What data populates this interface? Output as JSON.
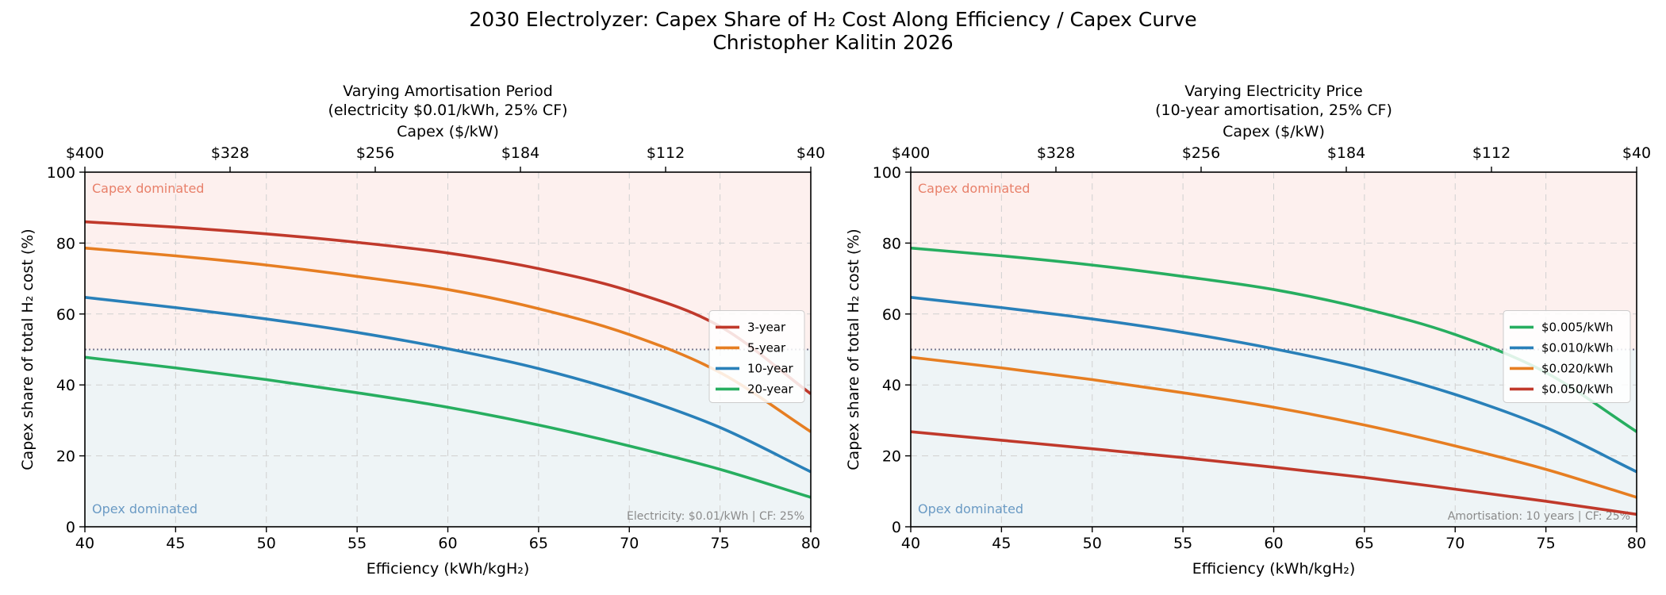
{
  "figure": {
    "title_line1": "2030 Electrolyzer: Capex Share of H₂ Cost Along Efficiency / Capex Curve",
    "title_line2": "Christopher Kalitin 2026"
  },
  "colors": {
    "red": "#c0392b",
    "orange": "#e67e22",
    "blue": "#2980b9",
    "green": "#27ae60",
    "capex_region": "#fdf0ee",
    "opex_region": "#eef4f6",
    "capex_text": "#e8806a",
    "opex_text": "#6a9ac4",
    "threshold": "#7a7a90"
  },
  "chart_data": [
    {
      "type": "line",
      "title_line1": "Varying Amortisation Period",
      "title_line2": "(electricity $0.01/kWh, 25% CF)",
      "xlabel": "Efficiency (kWh/kgH₂)",
      "ylabel": "Capex share of total H₂ cost (%)",
      "top_xlabel": "Capex ($/kW)",
      "xlim": [
        40,
        80
      ],
      "ylim": [
        0,
        100
      ],
      "xticks": [
        "40",
        "45",
        "50",
        "55",
        "60",
        "65",
        "70",
        "75",
        "80"
      ],
      "yticks": [
        "0",
        "20",
        "40",
        "60",
        "80",
        "100"
      ],
      "top_ticks": [
        {
          "x": 40,
          "label": "$400"
        },
        {
          "x": 48,
          "label": "$328"
        },
        {
          "x": 56,
          "label": "$256"
        },
        {
          "x": 64,
          "label": "$184"
        },
        {
          "x": 72,
          "label": "$112"
        },
        {
          "x": 80,
          "label": "$40"
        }
      ],
      "grid": true,
      "threshold": 50,
      "region_labels": {
        "upper": "Capex dominated",
        "lower": "Opex dominated"
      },
      "annotation": "Electricity: $0.01/kWh  |  CF: 25%",
      "legend_position": "center-right",
      "x": [
        40,
        45,
        50,
        55,
        60,
        65,
        70,
        75,
        80
      ],
      "series": [
        {
          "name": "3-year",
          "color": "#c0392b",
          "values": [
            86,
            84.5,
            82.6,
            80.2,
            77.2,
            72.8,
            66.5,
            56.5,
            37.5
          ]
        },
        {
          "name": "5-year",
          "color": "#e67e22",
          "values": [
            78.6,
            76.4,
            73.8,
            70.6,
            66.9,
            61.5,
            54.2,
            43.5,
            26.8
          ]
        },
        {
          "name": "10-year",
          "color": "#2980b9",
          "values": [
            64.7,
            61.8,
            58.6,
            54.8,
            50.2,
            44.6,
            37.3,
            28,
            15.5
          ]
        },
        {
          "name": "20-year",
          "color": "#27ae60",
          "values": [
            47.8,
            44.8,
            41.5,
            37.8,
            33.7,
            28.7,
            22.8,
            16.2,
            8.3
          ]
        }
      ]
    },
    {
      "type": "line",
      "title_line1": "Varying Electricity Price",
      "title_line2": "(10-year amortisation, 25% CF)",
      "xlabel": "Efficiency (kWh/kgH₂)",
      "ylabel": "Capex share of total H₂ cost (%)",
      "top_xlabel": "Capex ($/kW)",
      "xlim": [
        40,
        80
      ],
      "ylim": [
        0,
        100
      ],
      "xticks": [
        "40",
        "45",
        "50",
        "55",
        "60",
        "65",
        "70",
        "75",
        "80"
      ],
      "yticks": [
        "0",
        "20",
        "40",
        "60",
        "80",
        "100"
      ],
      "top_ticks": [
        {
          "x": 40,
          "label": "$400"
        },
        {
          "x": 48,
          "label": "$328"
        },
        {
          "x": 56,
          "label": "$256"
        },
        {
          "x": 64,
          "label": "$184"
        },
        {
          "x": 72,
          "label": "$112"
        },
        {
          "x": 80,
          "label": "$40"
        }
      ],
      "grid": true,
      "threshold": 50,
      "region_labels": {
        "upper": "Capex dominated",
        "lower": "Opex dominated"
      },
      "annotation": "Amortisation: 10 years  |  CF: 25%",
      "legend_position": "center-right",
      "x": [
        40,
        45,
        50,
        55,
        60,
        65,
        70,
        75,
        80
      ],
      "series": [
        {
          "name": "$0.005/kWh",
          "color": "#27ae60",
          "values": [
            78.6,
            76.4,
            73.8,
            70.6,
            66.9,
            61.5,
            54.2,
            43.5,
            26.8
          ]
        },
        {
          "name": "$0.010/kWh",
          "color": "#2980b9",
          "values": [
            64.7,
            61.8,
            58.6,
            54.8,
            50.2,
            44.6,
            37.3,
            28,
            15.5
          ]
        },
        {
          "name": "$0.020/kWh",
          "color": "#e67e22",
          "values": [
            47.8,
            44.8,
            41.5,
            37.8,
            33.7,
            28.7,
            22.8,
            16.2,
            8.3
          ]
        },
        {
          "name": "$0.050/kWh",
          "color": "#c0392b",
          "values": [
            26.8,
            24.4,
            22,
            19.5,
            16.8,
            13.9,
            10.6,
            7.2,
            3.5
          ]
        }
      ]
    }
  ]
}
